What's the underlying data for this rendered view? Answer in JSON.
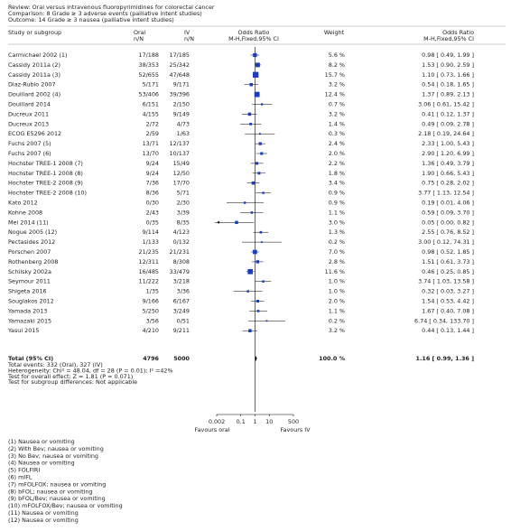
{
  "chart_data": {
    "type": "forest",
    "header_lines": [
      "Review:  Oral versus intravenous fluoropyrimidines for colorectal cancer",
      "Comparison:  8 Grade ≥ 3 adverse events (palliative intent studies)",
      "Outcome:  14 Grade ≥ 3 nausea (palliative intent studies)"
    ],
    "columns": {
      "study": "Study or subgroup",
      "oral": [
        "Oral",
        "n/N"
      ],
      "iv": [
        "IV",
        "n/N"
      ],
      "plot": [
        "Odds Ratio",
        "M-H,Fixed,95% CI"
      ],
      "weight": "Weight",
      "or": [
        "Odds Ratio",
        "M-H,Fixed,95% CI"
      ]
    },
    "studies": [
      "Carmichael 2002 (1)",
      "Cassidy 2011a (2)",
      "Cassidy 2011a (3)",
      "Diaz-Rubio 2007",
      "Douillard 2002 (4)",
      "Douillard 2014",
      "Ducreux 2011",
      "Ducreux 2013",
      "ECOG E5296 2012",
      "Fuchs 2007 (5)",
      "Fuchs 2007 (6)",
      "Hochster TREE-1 2008 (7)",
      "Hochster TREE-1 2008 (8)",
      "Hochster TREE-2 2008 (9)",
      "Hochster TREE-2 2008 (10)",
      "Kato 2012",
      "Kohne 2008",
      "Mei 2014 (11)",
      "Nogue 2005 (12)",
      "Pectasides 2012",
      "Porschen 2007",
      "Rothenberg 2008",
      "Schilsky 2002a",
      "Seymour 2011",
      "Shigeta 2016",
      "Souglakos 2012",
      "Yamada 2013",
      "Yamazaki 2015",
      "Yasui 2015"
    ],
    "oral": [
      "17/188",
      "38/353",
      "52/655",
      "5/171",
      "53/406",
      "6/151",
      "4/155",
      "2/72",
      "2/59",
      "13/71",
      "13/70",
      "9/24",
      "9/24",
      "7/36",
      "8/36",
      "0/30",
      "2/43",
      "0/35",
      "9/114",
      "1/133",
      "21/235",
      "12/311",
      "16/485",
      "11/222",
      "1/35",
      "9/166",
      "5/250",
      "3/56",
      "4/210"
    ],
    "iv": [
      "17/185",
      "25/342",
      "47/648",
      "9/171",
      "39/396",
      "2/150",
      "9/149",
      "4/73",
      "1/63",
      "12/137",
      "10/137",
      "15/49",
      "12/50",
      "17/70",
      "5/71",
      "2/30",
      "3/39",
      "8/35",
      "4/123",
      "0/132",
      "21/231",
      "8/308",
      "33/479",
      "3/218",
      "3/36",
      "6/167",
      "3/249",
      "0/51",
      "9/211"
    ],
    "weights": [
      5.6,
      8.2,
      15.7,
      3.2,
      12.4,
      0.7,
      3.2,
      1.4,
      0.3,
      2.4,
      2.0,
      2.2,
      1.8,
      3.4,
      0.9,
      0.9,
      1.1,
      3.0,
      1.3,
      0.2,
      7.0,
      2.8,
      11.6,
      1.0,
      1.0,
      2.0,
      1.1,
      0.2,
      3.2
    ],
    "weight_labels": [
      "5.6 %",
      "8.2 %",
      "15.7 %",
      "3.2 %",
      "12.4 %",
      "0.7 %",
      "3.2 %",
      "1.4 %",
      "0.3 %",
      "2.4 %",
      "2.0 %",
      "2.2 %",
      "1.8 %",
      "3.4 %",
      "0.9 %",
      "0.9 %",
      "1.1 %",
      "3.0 %",
      "1.3 %",
      "0.2 %",
      "7.0 %",
      "2.8 %",
      "11.6 %",
      "1.0 %",
      "1.0 %",
      "2.0 %",
      "1.1 %",
      "0.2 %",
      "3.2 %"
    ],
    "values": [
      0.98,
      1.53,
      1.1,
      0.54,
      1.37,
      3.06,
      0.41,
      0.49,
      2.18,
      2.33,
      2.9,
      1.36,
      1.9,
      0.75,
      3.77,
      0.19,
      0.59,
      0.05,
      2.55,
      3.0,
      0.98,
      1.51,
      0.46,
      3.74,
      0.32,
      1.54,
      1.67,
      6.74,
      0.44
    ],
    "ci_low": [
      0.49,
      0.9,
      0.73,
      0.18,
      0.89,
      0.61,
      0.12,
      0.09,
      0.19,
      1.0,
      1.2,
      0.49,
      0.66,
      0.28,
      1.13,
      0.01,
      0.09,
      0.0,
      0.76,
      0.12,
      0.52,
      0.61,
      0.25,
      1.03,
      0.03,
      0.53,
      0.4,
      0.34,
      0.13
    ],
    "ci_high": [
      1.99,
      2.59,
      1.66,
      1.65,
      2.13,
      15.42,
      1.37,
      2.78,
      24.64,
      5.43,
      6.99,
      3.79,
      5.43,
      2.02,
      12.54,
      4.06,
      3.7,
      0.82,
      8.52,
      74.31,
      1.85,
      3.73,
      0.85,
      13.58,
      3.27,
      4.42,
      7.08,
      133.7,
      1.44
    ],
    "value_labels": [
      "0.98 [ 0.49, 1.99 ]",
      "1.53 [ 0.90, 2.59 ]",
      "1.10 [ 0.73, 1.66 ]",
      "0.54 [ 0.18, 1.65 ]",
      "1.37 [ 0.89, 2.13 ]",
      "3.06 [ 0.61, 15.42 ]",
      "0.41 [ 0.12, 1.37 ]",
      "0.49 [ 0.09, 2.78 ]",
      "2.18 [ 0.19, 24.64 ]",
      "2.33 [ 1.00, 5.43 ]",
      "2.90 [ 1.20, 6.99 ]",
      "1.36 [ 0.49, 3.79 ]",
      "1.90 [ 0.66, 5.43 ]",
      "0.75 [ 0.28, 2.02 ]",
      "3.77 [ 1.13, 12.54 ]",
      "0.19 [ 0.01, 4.06 ]",
      "0.59 [ 0.09, 3.70 ]",
      "0.05 [ 0.00, 0.82 ]",
      "2.55 [ 0.76, 8.52 ]",
      "3.00 [ 0.12, 74.31 ]",
      "0.98 [ 0.52, 1.85 ]",
      "1.51 [ 0.61, 3.73 ]",
      "0.46 [ 0.25, 0.85 ]",
      "3.74 [ 1.03, 13.58 ]",
      "0.32 [ 0.03, 3.27 ]",
      "1.54 [ 0.53, 4.42 ]",
      "1.67 [ 0.40, 7.08 ]",
      "6.74 [ 0.34, 133.70 ]",
      "0.44 [ 0.13, 1.44 ]"
    ],
    "total": {
      "label": "Total (95% CI)",
      "oral": 4796,
      "iv": 5000,
      "weight": 100,
      "weight_label": "100.0 %",
      "value": 1.16,
      "ci_low": 0.99,
      "ci_high": 1.36,
      "value_label": "1.16 [ 0.99, 1.36 ]"
    },
    "stats": [
      "Total events: 332 (Oral), 327 (IV)",
      "Heterogeneity: Chi² = 48.04, df = 28 (P = 0.01); I² =42%",
      "Test for overall effect: Z = 1.81 (P = 0.071)",
      "Test for subgroup differences: Not applicable"
    ],
    "log_x": true,
    "xlim": [
      0.002,
      500
    ],
    "xticks": [
      0.002,
      0.1,
      1,
      10,
      500
    ],
    "favours_left": "Favours oral",
    "favours_right": "Favours IV",
    "color": "#1a3cc4",
    "footnotes": [
      "(1) Nausea or vomiting",
      "(2) With Bev; nausea or vomiting",
      "(3) No Bev; nausea or vomiting",
      "(4) Nausea or vomiting",
      "(5) FOLFIRI",
      "(6) mIFL",
      "(7) mFOLFOX; nausea or vomiting",
      "(8) bFOL; nausea or vomiting",
      "(9) bFOL/Bev; nausea or vomiting",
      "(10) mFOLFOX/Bev; nausea or vomiting",
      "(11) Nausea or vomiting",
      "(12) Nausea or vomiting"
    ]
  }
}
